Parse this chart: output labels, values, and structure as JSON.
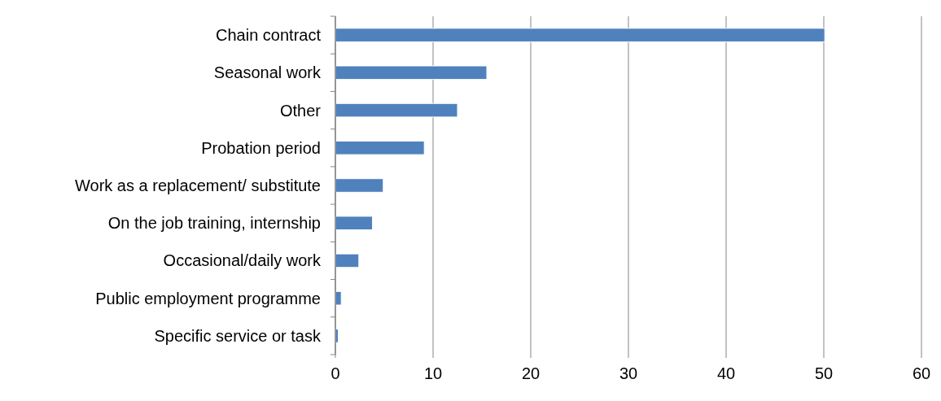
{
  "chart_data": {
    "type": "bar",
    "orientation": "horizontal",
    "categories": [
      "Chain contract",
      "Seasonal work",
      "Other",
      "Probation period",
      "Work as a replacement/ substitute",
      "On the job training, internship",
      "Occasional/daily work",
      "Public employment programme",
      "Specific service or task"
    ],
    "values": [
      50.1,
      15.5,
      12.5,
      9.1,
      4.9,
      3.8,
      2.4,
      0.6,
      0.3
    ],
    "color": "#4f81bd",
    "xlim": [
      0,
      60
    ],
    "xticks": [
      0,
      10,
      20,
      30,
      40,
      50,
      60
    ],
    "grid": "x"
  }
}
